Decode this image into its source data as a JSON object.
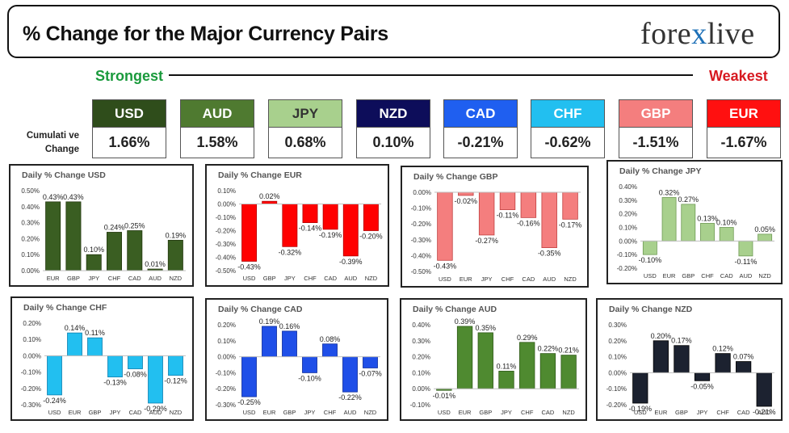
{
  "header": {
    "title": "% Change for the Major Currency Pairs",
    "logo_left": "fore",
    "logo_x": "x",
    "logo_right": "live"
  },
  "legend": {
    "strongest": "Strongest",
    "weakest": "Weakest"
  },
  "cumulative": {
    "label_line1": "Cumulati ve",
    "label_line2": "Change",
    "currencies": [
      {
        "code": "USD",
        "value": "1.66%",
        "color": "#2f4d1b"
      },
      {
        "code": "AUD",
        "value": "1.58%",
        "color": "#4f7a30"
      },
      {
        "code": "JPY",
        "value": "0.68%",
        "color": "#a8d08d"
      },
      {
        "code": "NZD",
        "value": "0.10%",
        "color": "#0d0d5a"
      },
      {
        "code": "CAD",
        "value": "-0.21%",
        "color": "#1f5ff0"
      },
      {
        "code": "CHF",
        "value": "-0.62%",
        "color": "#22bff0"
      },
      {
        "code": "GBP",
        "value": "-1.51%",
        "color": "#f47e7e"
      },
      {
        "code": "EUR",
        "value": "-1.67%",
        "color": "#ff1010"
      }
    ]
  },
  "chart_data": [
    {
      "type": "bar",
      "title": "Daily % Change USD",
      "categories": [
        "EUR",
        "GBP",
        "JPY",
        "CHF",
        "CAD",
        "AUD",
        "NZD"
      ],
      "values": [
        0.43,
        0.43,
        0.1,
        0.24,
        0.25,
        0.01,
        0.19
      ],
      "labels": [
        "0.43%",
        "0.43%",
        "0.10%",
        "0.24%",
        "0.25%",
        "0.01%",
        "0.19%"
      ],
      "yticks": [
        "0.50%",
        "0.40%",
        "0.30%",
        "0.20%",
        "0.10%",
        "0.00%"
      ],
      "ytick_values": [
        0.5,
        0.4,
        0.3,
        0.2,
        0.1,
        0.0
      ],
      "ylim": [
        0,
        0.5
      ],
      "color": "#3a5e22",
      "edge": "#24380f"
    },
    {
      "type": "bar",
      "title": "Daily % Change EUR",
      "categories": [
        "USD",
        "GBP",
        "JPY",
        "CHF",
        "CAD",
        "AUD",
        "NZD"
      ],
      "values": [
        -0.43,
        0.02,
        -0.32,
        -0.14,
        -0.19,
        -0.39,
        -0.2
      ],
      "labels": [
        "-0.43%",
        "0.02%",
        "-0.32%",
        "-0.14%",
        "-0.19%",
        "-0.39%",
        "-0.20%"
      ],
      "yticks": [
        "0.10%",
        "0.00%",
        "-0.10%",
        "-0.20%",
        "-0.30%",
        "-0.40%",
        "-0.50%"
      ],
      "ytick_values": [
        0.1,
        0.0,
        -0.1,
        -0.2,
        -0.3,
        -0.4,
        -0.5
      ],
      "ylim": [
        -0.5,
        0.1
      ],
      "color": "#ff0000",
      "edge": "#b00000"
    },
    {
      "type": "bar",
      "title": "Daily % Change GBP",
      "categories": [
        "USD",
        "EUR",
        "JPY",
        "CHF",
        "CAD",
        "AUD",
        "NZD"
      ],
      "values": [
        -0.43,
        -0.02,
        -0.27,
        -0.11,
        -0.16,
        -0.35,
        -0.17
      ],
      "labels": [
        "-0.43%",
        "-0.02%",
        "-0.27%",
        "-0.11%",
        "-0.16%",
        "-0.35%",
        "-0.17%"
      ],
      "yticks": [
        "0.00%",
        "-0.10%",
        "-0.20%",
        "-0.30%",
        "-0.40%",
        "-0.50%"
      ],
      "ytick_values": [
        0.0,
        -0.1,
        -0.2,
        -0.3,
        -0.4,
        -0.5
      ],
      "ylim": [
        -0.5,
        0.0
      ],
      "color": "#f47e7e",
      "edge": "#c04040"
    },
    {
      "type": "bar",
      "title": "Daily % Change JPY",
      "categories": [
        "USD",
        "EUR",
        "GBP",
        "CHF",
        "CAD",
        "AUD",
        "NZD"
      ],
      "values": [
        -0.1,
        0.32,
        0.27,
        0.13,
        0.1,
        -0.11,
        0.05
      ],
      "labels": [
        "-0.10%",
        "0.32%",
        "0.27%",
        "0.13%",
        "0.10%",
        "-0.11%",
        "0.05%"
      ],
      "yticks": [
        "0.40%",
        "0.30%",
        "0.20%",
        "0.10%",
        "0.00%",
        "-0.10%",
        "-0.20%"
      ],
      "ytick_values": [
        0.4,
        0.3,
        0.2,
        0.1,
        0.0,
        -0.1,
        -0.2
      ],
      "ylim": [
        -0.2,
        0.4
      ],
      "color": "#a8d08d",
      "edge": "#6f9a55"
    },
    {
      "type": "bar",
      "title": "Daily % Change CHF",
      "categories": [
        "USD",
        "EUR",
        "GBP",
        "JPY",
        "CAD",
        "AUD",
        "NZD"
      ],
      "values": [
        -0.24,
        0.14,
        0.11,
        -0.13,
        -0.08,
        -0.29,
        -0.12
      ],
      "labels": [
        "-0.24%",
        "0.14%",
        "0.11%",
        "-0.13%",
        "-0.08%",
        "-0.29%",
        "-0.12%"
      ],
      "yticks": [
        "0.20%",
        "0.10%",
        "0.00%",
        "-0.10%",
        "-0.20%",
        "-0.30%"
      ],
      "ytick_values": [
        0.2,
        0.1,
        0.0,
        -0.1,
        -0.2,
        -0.3
      ],
      "ylim": [
        -0.3,
        0.2
      ],
      "color": "#22bff0",
      "edge": "#1080b0"
    },
    {
      "type": "bar",
      "title": "Daily % Change CAD",
      "categories": [
        "USD",
        "EUR",
        "GBP",
        "JPY",
        "CHF",
        "AUD",
        "NZD"
      ],
      "values": [
        -0.25,
        0.19,
        0.16,
        -0.1,
        0.08,
        -0.22,
        -0.07
      ],
      "labels": [
        "-0.25%",
        "0.19%",
        "0.16%",
        "-0.10%",
        "0.08%",
        "-0.22%",
        "-0.07%"
      ],
      "yticks": [
        "0.20%",
        "0.10%",
        "0.00%",
        "-0.10%",
        "-0.20%",
        "-0.30%"
      ],
      "ytick_values": [
        0.2,
        0.1,
        0.0,
        -0.1,
        -0.2,
        -0.3
      ],
      "ylim": [
        -0.3,
        0.2
      ],
      "color": "#1f4fe8",
      "edge": "#0a2a9a"
    },
    {
      "type": "bar",
      "title": "Daily % Change AUD",
      "categories": [
        "USD",
        "EUR",
        "GBP",
        "JPY",
        "CHF",
        "CAD",
        "NZD"
      ],
      "values": [
        -0.01,
        0.39,
        0.35,
        0.11,
        0.29,
        0.22,
        0.21
      ],
      "labels": [
        "-0.01%",
        "0.39%",
        "0.35%",
        "0.11%",
        "0.29%",
        "0.22%",
        "0.21%"
      ],
      "yticks": [
        "0.40%",
        "0.30%",
        "0.20%",
        "0.10%",
        "0.00%",
        "-0.10%"
      ],
      "ytick_values": [
        0.4,
        0.3,
        0.2,
        0.1,
        0.0,
        -0.1
      ],
      "ylim": [
        -0.1,
        0.4
      ],
      "color": "#4f8a30",
      "edge": "#2f5a18"
    },
    {
      "type": "bar",
      "title": "Daily % Change NZD",
      "categories": [
        "USD",
        "EUR",
        "GBP",
        "JPY",
        "CHF",
        "CAD",
        "AUD"
      ],
      "values": [
        -0.19,
        0.2,
        0.17,
        -0.05,
        0.12,
        0.07,
        -0.21
      ],
      "labels": [
        "-0.19%",
        "0.20%",
        "0.17%",
        "-0.05%",
        "0.12%",
        "0.07%",
        "-0.21%"
      ],
      "yticks": [
        "0.30%",
        "0.20%",
        "0.10%",
        "0.00%",
        "-0.10%",
        "-0.20%"
      ],
      "ytick_values": [
        0.3,
        0.2,
        0.1,
        0.0,
        -0.1,
        -0.2
      ],
      "ylim": [
        -0.2,
        0.3
      ],
      "color": "#1c2230",
      "edge": "#000000"
    }
  ]
}
